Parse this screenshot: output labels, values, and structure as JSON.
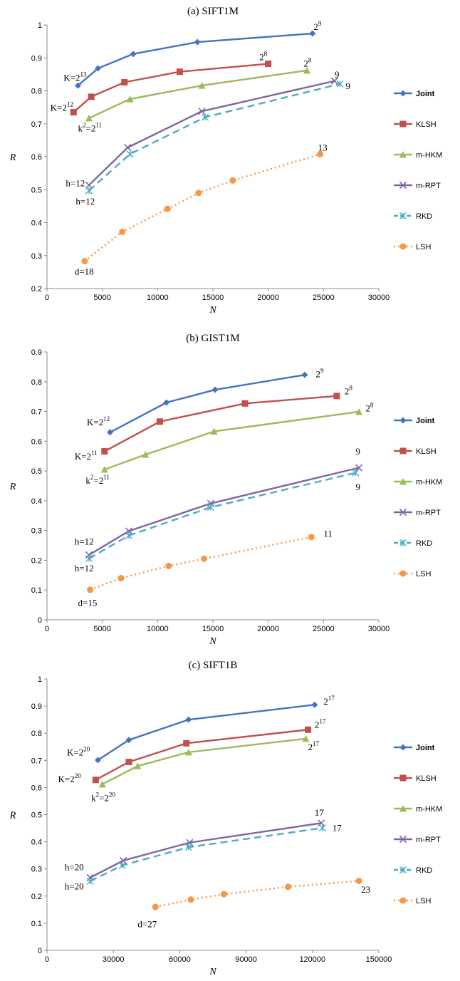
{
  "styles": {
    "Joint": {
      "color": "#4472C4",
      "marker": "diamond",
      "dash": ""
    },
    "KLSH": {
      "color": "#C0504D",
      "marker": "square",
      "dash": ""
    },
    "m-HKM": {
      "color": "#9BBB59",
      "marker": "triangle",
      "dash": ""
    },
    "m-RPT": {
      "color": "#8064A2",
      "marker": "x",
      "dash": ""
    },
    "RKD": {
      "color": "#4BACC6",
      "marker": "star",
      "dash": "10,6"
    },
    "LSH": {
      "color": "#F79646",
      "marker": "circle",
      "dash": "2,4"
    }
  },
  "chart_data": [
    {
      "type": "line",
      "title": "(a) SIFT1M",
      "xlabel": "N",
      "ylabel": "R",
      "xlim": [
        0,
        30000
      ],
      "ylim": [
        0.2,
        1.0
      ],
      "xticks": [
        0,
        5000,
        10000,
        15000,
        20000,
        25000,
        30000
      ],
      "yticks": [
        0.2,
        0.3,
        0.4,
        0.5,
        0.6,
        0.7,
        0.8,
        0.9,
        1.0
      ],
      "ytick_labels": [
        "0.2",
        "0.3",
        "0.4",
        "0.5",
        "0.6",
        "0.7",
        "0.8",
        "0.9",
        "1"
      ],
      "legend_position": "right",
      "series": [
        {
          "name": "Joint",
          "x": [
            2800,
            4600,
            7800,
            13600,
            24000
          ],
          "y": [
            0.816,
            0.868,
            0.912,
            0.948,
            0.974
          ]
        },
        {
          "name": "KLSH",
          "x": [
            2400,
            4000,
            7000,
            12000,
            20000
          ],
          "y": [
            0.735,
            0.782,
            0.826,
            0.858,
            0.882
          ]
        },
        {
          "name": "m-HKM",
          "x": [
            3800,
            7500,
            14000,
            23500
          ],
          "y": [
            0.717,
            0.775,
            0.816,
            0.862
          ]
        },
        {
          "name": "m-RPT",
          "x": [
            3800,
            7300,
            14000,
            26000
          ],
          "y": [
            0.514,
            0.628,
            0.738,
            0.83
          ]
        },
        {
          "name": "RKD",
          "x": [
            3800,
            7500,
            14300,
            26500
          ],
          "y": [
            0.497,
            0.608,
            0.72,
            0.821
          ]
        },
        {
          "name": "LSH",
          "x": [
            3400,
            6800,
            10900,
            13700,
            16800,
            24700
          ],
          "y": [
            0.283,
            0.372,
            0.442,
            0.49,
            0.528,
            0.608
          ]
        }
      ],
      "annotations": [
        {
          "base": "2",
          "sup": "9",
          "x": 24100,
          "y": 0.985
        },
        {
          "base": "2",
          "sup": "8",
          "x": 19200,
          "y": 0.893
        },
        {
          "base": "2",
          "sup": "8",
          "x": 23200,
          "y": 0.873
        },
        {
          "base": "K=2",
          "sup": "13",
          "x": 1500,
          "y": 0.83
        },
        {
          "base": "K=2",
          "sup": "12",
          "x": 300,
          "y": 0.74
        },
        {
          "base": "k",
          "sup": "2",
          "base2": "=2",
          "sup2": "11",
          "x": 2800,
          "y": 0.677
        },
        {
          "base": "9",
          "x": 26000,
          "y": 0.84
        },
        {
          "base": "9",
          "x": 27000,
          "y": 0.805
        },
        {
          "base": "h=12",
          "x": 1700,
          "y": 0.51
        },
        {
          "base": "h=12",
          "x": 2600,
          "y": 0.455
        },
        {
          "base": "13",
          "x": 24500,
          "y": 0.618
        },
        {
          "base": "d=18",
          "x": 2500,
          "y": 0.242
        }
      ]
    },
    {
      "type": "line",
      "title": "(b) GIST1M",
      "xlabel": "N",
      "ylabel": "R",
      "xlim": [
        0,
        30000
      ],
      "ylim": [
        0,
        0.9
      ],
      "xticks": [
        0,
        5000,
        10000,
        15000,
        20000,
        25000,
        30000
      ],
      "yticks": [
        0,
        0.1,
        0.2,
        0.3,
        0.4,
        0.5,
        0.6,
        0.7,
        0.8,
        0.9
      ],
      "ytick_labels": [
        "0",
        "0.1",
        "0.2",
        "0.3",
        "0.4",
        "0.5",
        "0.6",
        "0.7",
        "0.8",
        "0.9"
      ],
      "legend_position": "right",
      "series": [
        {
          "name": "Joint",
          "x": [
            5700,
            10800,
            15200,
            23300
          ],
          "y": [
            0.63,
            0.73,
            0.773,
            0.823
          ]
        },
        {
          "name": "KLSH",
          "x": [
            5200,
            10200,
            17900,
            26200
          ],
          "y": [
            0.566,
            0.666,
            0.727,
            0.752
          ]
        },
        {
          "name": "m-HKM",
          "x": [
            5200,
            8900,
            15100,
            28200
          ],
          "y": [
            0.505,
            0.555,
            0.633,
            0.699
          ]
        },
        {
          "name": "m-RPT",
          "x": [
            3800,
            7400,
            14800,
            28200
          ],
          "y": [
            0.218,
            0.298,
            0.391,
            0.511
          ]
        },
        {
          "name": "RKD",
          "x": [
            3800,
            7400,
            14800,
            27900
          ],
          "y": [
            0.206,
            0.283,
            0.378,
            0.494
          ]
        },
        {
          "name": "LSH",
          "x": [
            3900,
            6700,
            11000,
            14200,
            23900
          ],
          "y": [
            0.101,
            0.14,
            0.181,
            0.205,
            0.278
          ]
        }
      ],
      "annotations": [
        {
          "base": "2",
          "sup": "9",
          "x": 24300,
          "y": 0.815
        },
        {
          "base": "2",
          "sup": "8",
          "x": 26900,
          "y": 0.757
        },
        {
          "base": "2",
          "sup": "8",
          "x": 28800,
          "y": 0.7
        },
        {
          "base": "K=2",
          "sup": "12",
          "x": 3600,
          "y": 0.653
        },
        {
          "base": "K=2",
          "sup": "11",
          "x": 2500,
          "y": 0.538
        },
        {
          "base": "k",
          "sup": "2",
          "base2": "=2",
          "sup2": "11",
          "x": 3500,
          "y": 0.457
        },
        {
          "base": "9",
          "x": 27900,
          "y": 0.555
        },
        {
          "base": "9",
          "x": 27900,
          "y": 0.436
        },
        {
          "base": "h=12",
          "x": 2500,
          "y": 0.253
        },
        {
          "base": "h=12",
          "x": 2500,
          "y": 0.163
        },
        {
          "base": "11",
          "x": 25000,
          "y": 0.279
        },
        {
          "base": "d=15",
          "x": 2800,
          "y": 0.047
        }
      ]
    },
    {
      "type": "line",
      "title": "(c) SIFT1B",
      "xlabel": "N",
      "ylabel": "R",
      "xlim": [
        0,
        150000
      ],
      "ylim": [
        0,
        1.0
      ],
      "xticks": [
        0,
        30000,
        60000,
        90000,
        120000,
        150000
      ],
      "yticks": [
        0,
        0.1,
        0.2,
        0.3,
        0.4,
        0.5,
        0.6,
        0.7,
        0.8,
        0.9,
        1.0
      ],
      "ytick_labels": [
        "0",
        "0.1",
        "0.2",
        "0.3",
        "0.4",
        "0.5",
        "0.6",
        "0.7",
        "0.8",
        "0.9",
        "1"
      ],
      "legend_position": "right",
      "series": [
        {
          "name": "Joint",
          "x": [
            23000,
            37000,
            64000,
            121000
          ],
          "y": [
            0.701,
            0.775,
            0.85,
            0.905
          ]
        },
        {
          "name": "KLSH",
          "x": [
            22000,
            37000,
            63000,
            118000
          ],
          "y": [
            0.628,
            0.694,
            0.763,
            0.813
          ]
        },
        {
          "name": "m-HKM",
          "x": [
            25000,
            41000,
            64000,
            117000
          ],
          "y": [
            0.612,
            0.679,
            0.73,
            0.78
          ]
        },
        {
          "name": "m-RPT",
          "x": [
            19500,
            34500,
            64500,
            124000
          ],
          "y": [
            0.268,
            0.331,
            0.397,
            0.469
          ]
        },
        {
          "name": "RKD",
          "x": [
            19500,
            34000,
            64000,
            124500
          ],
          "y": [
            0.255,
            0.313,
            0.38,
            0.451
          ]
        },
        {
          "name": "LSH",
          "x": [
            49000,
            65000,
            80000,
            109000,
            141000
          ],
          "y": [
            0.16,
            0.187,
            0.207,
            0.234,
            0.256
          ]
        }
      ],
      "annotations": [
        {
          "base": "2",
          "sup": "17",
          "x": 125000,
          "y": 0.905
        },
        {
          "base": "2",
          "sup": "17",
          "x": 121000,
          "y": 0.82
        },
        {
          "base": "2",
          "sup": "17",
          "x": 118000,
          "y": 0.737
        },
        {
          "base": "K=2",
          "sup": "20",
          "x": 9000,
          "y": 0.718
        },
        {
          "base": "K=2",
          "sup": "20",
          "x": 5000,
          "y": 0.62
        },
        {
          "base": "k",
          "sup": "2",
          "base2": "=2",
          "sup2": "20",
          "x": 20000,
          "y": 0.55
        },
        {
          "base": "17",
          "x": 121000,
          "y": 0.496
        },
        {
          "base": "17",
          "x": 129000,
          "y": 0.44
        },
        {
          "base": "h=20",
          "x": 8000,
          "y": 0.295
        },
        {
          "base": "h=20",
          "x": 8000,
          "y": 0.225
        },
        {
          "base": "23",
          "x": 142000,
          "y": 0.212
        },
        {
          "base": "d=27",
          "x": 41000,
          "y": 0.085
        }
      ]
    }
  ]
}
